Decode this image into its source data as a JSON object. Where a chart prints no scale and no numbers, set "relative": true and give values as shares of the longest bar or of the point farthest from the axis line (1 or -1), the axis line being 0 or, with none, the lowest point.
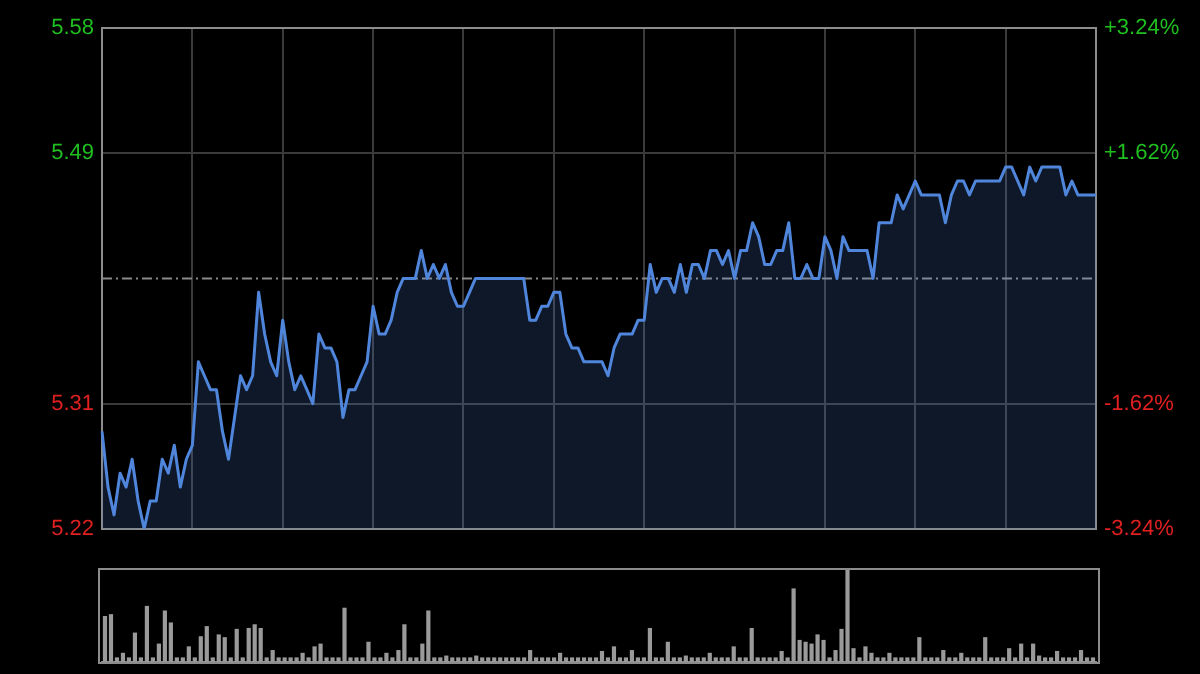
{
  "chart_data": [
    {
      "type": "area",
      "categories": [
        null,
        null,
        null,
        null,
        null,
        null,
        null,
        null,
        null,
        null,
        null,
        null,
        null,
        null,
        null,
        null,
        null,
        null,
        null,
        null,
        null,
        null,
        null,
        null,
        null,
        null,
        null,
        null,
        null,
        null,
        null,
        null,
        null,
        null,
        null,
        null,
        null,
        null,
        null,
        null,
        null,
        null,
        null,
        null,
        null,
        null,
        null,
        null,
        null,
        null,
        null,
        null,
        null,
        null,
        null,
        null,
        null,
        null,
        null,
        null,
        null,
        null,
        null,
        null,
        null,
        null,
        null,
        null,
        null,
        null,
        null,
        null,
        null,
        null,
        null,
        null,
        null,
        null,
        null,
        null,
        null,
        null,
        null,
        null,
        null,
        null,
        null,
        null,
        null,
        null,
        null,
        null,
        null,
        null,
        null,
        null,
        null,
        null,
        null,
        null,
        null,
        null,
        null,
        null,
        null,
        null,
        null,
        null,
        null,
        null,
        null,
        null,
        null,
        null,
        null,
        null,
        null,
        null,
        null,
        null,
        null,
        null,
        null,
        null,
        null,
        null,
        null,
        null,
        null,
        null,
        null,
        null,
        null,
        null,
        null,
        null,
        null,
        null,
        null,
        null,
        null,
        null,
        null,
        null,
        null,
        null,
        null,
        null,
        null,
        null,
        null,
        null,
        null,
        null,
        null,
        null,
        null,
        null,
        null,
        null,
        null,
        null,
        null,
        null,
        null,
        null
      ],
      "ylim": [
        5.22,
        5.58
      ],
      "yticks": [
        5.22,
        5.31,
        5.49,
        5.58
      ],
      "y2lim": [
        -3.24,
        3.24
      ],
      "y2ticks": [
        {
          "value": -3.24,
          "label": "-3.24%"
        },
        {
          "value": -1.62,
          "label": "-1.62%"
        },
        {
          "value": 1.62,
          "label": "+1.62%"
        },
        {
          "value": 3.24,
          "label": "+3.24%"
        }
      ],
      "grid": true,
      "tick_labels": "y",
      "ref_lines": [
        {
          "axis": "y",
          "value": 5.4,
          "line_style": "dashed",
          "color": "#8a8a8a"
        }
      ],
      "series": [
        {
          "color": "#4f86dc",
          "values": [
            5.29,
            5.25,
            5.23,
            5.26,
            5.25,
            5.27,
            5.24,
            5.22,
            5.24,
            5.24,
            5.27,
            5.26,
            5.28,
            5.25,
            5.27,
            5.28,
            5.34,
            5.33,
            5.32,
            5.32,
            5.29,
            5.27,
            5.3,
            5.33,
            5.32,
            5.33,
            5.39,
            5.36,
            5.34,
            5.33,
            5.37,
            5.34,
            5.32,
            5.33,
            5.32,
            5.31,
            5.36,
            5.35,
            5.35,
            5.34,
            5.3,
            5.32,
            5.32,
            5.33,
            5.34,
            5.38,
            5.36,
            5.36,
            5.37,
            5.39,
            5.4,
            5.4,
            5.4,
            5.42,
            5.4,
            5.41,
            5.4,
            5.41,
            5.39,
            5.38,
            5.38,
            5.39,
            5.4,
            5.4,
            5.4,
            5.4,
            5.4,
            5.4,
            5.4,
            5.4,
            5.4,
            5.37,
            5.37,
            5.38,
            5.38,
            5.39,
            5.39,
            5.36,
            5.35,
            5.35,
            5.34,
            5.34,
            5.34,
            5.34,
            5.33,
            5.35,
            5.36,
            5.36,
            5.36,
            5.37,
            5.37,
            5.41,
            5.39,
            5.4,
            5.4,
            5.39,
            5.41,
            5.39,
            5.41,
            5.41,
            5.4,
            5.42,
            5.42,
            5.41,
            5.42,
            5.4,
            5.42,
            5.42,
            5.44,
            5.43,
            5.41,
            5.41,
            5.42,
            5.42,
            5.44,
            5.4,
            5.4,
            5.41,
            5.4,
            5.4,
            5.43,
            5.42,
            5.4,
            5.43,
            5.42,
            5.42,
            5.42,
            5.42,
            5.4,
            5.44,
            5.44,
            5.44,
            5.46,
            5.45,
            5.46,
            5.47,
            5.46,
            5.46,
            5.46,
            5.46,
            5.44,
            5.46,
            5.47,
            5.47,
            5.46,
            5.47,
            5.47,
            5.47,
            5.47,
            5.47,
            5.48,
            5.48,
            5.47,
            5.46,
            5.48,
            5.47,
            5.48,
            5.48,
            5.48,
            5.48,
            5.46,
            5.47,
            5.46,
            5.46,
            5.46,
            5.46
          ]
        }
      ]
    },
    {
      "type": "bar",
      "relative": true,
      "tick_labels": false,
      "categories": [
        null,
        null,
        null,
        null,
        null,
        null,
        null,
        null,
        null,
        null,
        null,
        null,
        null,
        null,
        null,
        null,
        null,
        null,
        null,
        null,
        null,
        null,
        null,
        null,
        null,
        null,
        null,
        null,
        null,
        null,
        null,
        null,
        null,
        null,
        null,
        null,
        null,
        null,
        null,
        null,
        null,
        null,
        null,
        null,
        null,
        null,
        null,
        null,
        null,
        null,
        null,
        null,
        null,
        null,
        null,
        null,
        null,
        null,
        null,
        null,
        null,
        null,
        null,
        null,
        null,
        null,
        null,
        null,
        null,
        null,
        null,
        null,
        null,
        null,
        null,
        null,
        null,
        null,
        null,
        null,
        null,
        null,
        null,
        null,
        null,
        null,
        null,
        null,
        null,
        null,
        null,
        null,
        null,
        null,
        null,
        null,
        null,
        null,
        null,
        null,
        null,
        null,
        null,
        null,
        null,
        null,
        null,
        null,
        null,
        null,
        null,
        null,
        null,
        null,
        null,
        null,
        null,
        null,
        null,
        null,
        null,
        null,
        null,
        null,
        null,
        null,
        null,
        null,
        null,
        null,
        null,
        null,
        null,
        null,
        null,
        null,
        null,
        null,
        null,
        null,
        null,
        null,
        null,
        null,
        null,
        null,
        null,
        null,
        null,
        null,
        null,
        null,
        null,
        null,
        null,
        null,
        null,
        null,
        null,
        null,
        null,
        null,
        null,
        null,
        null,
        null
      ],
      "series": [
        {
          "color": "#9a9a9a",
          "values": [
            0.5,
            0.52,
            0.05,
            0.1,
            0.05,
            0.32,
            0.05,
            0.61,
            0.05,
            0.2,
            0.56,
            0.43,
            0.05,
            0.05,
            0.17,
            0.05,
            0.28,
            0.39,
            0.05,
            0.3,
            0.27,
            0.05,
            0.36,
            0.05,
            0.37,
            0.41,
            0.37,
            0.05,
            0.13,
            0.05,
            0.05,
            0.05,
            0.05,
            0.1,
            0.05,
            0.17,
            0.2,
            0.05,
            0.05,
            0.05,
            0.59,
            0.05,
            0.05,
            0.05,
            0.22,
            0.05,
            0.05,
            0.1,
            0.05,
            0.13,
            0.41,
            0.05,
            0.05,
            0.2,
            0.56,
            0.05,
            0.05,
            0.07,
            0.05,
            0.05,
            0.05,
            0.05,
            0.07,
            0.05,
            0.05,
            0.05,
            0.05,
            0.05,
            0.05,
            0.05,
            0.05,
            0.13,
            0.05,
            0.05,
            0.05,
            0.05,
            0.1,
            0.05,
            0.05,
            0.05,
            0.05,
            0.05,
            0.05,
            0.12,
            0.05,
            0.17,
            0.05,
            0.05,
            0.13,
            0.05,
            0.05,
            0.37,
            0.05,
            0.05,
            0.22,
            0.05,
            0.05,
            0.07,
            0.05,
            0.05,
            0.05,
            0.1,
            0.05,
            0.05,
            0.05,
            0.17,
            0.05,
            0.05,
            0.37,
            0.05,
            0.05,
            0.05,
            0.05,
            0.12,
            0.05,
            0.8,
            0.24,
            0.22,
            0.2,
            0.3,
            0.24,
            0.05,
            0.13,
            0.36,
            1,
            0.15,
            0.05,
            0.17,
            0.1,
            0.05,
            0.05,
            0.1,
            0.05,
            0.05,
            0.05,
            0.05,
            0.27,
            0.05,
            0.05,
            0.05,
            0.13,
            0.05,
            0.05,
            0.1,
            0.05,
            0.05,
            0.05,
            0.27,
            0.05,
            0.05,
            0.05,
            0.15,
            0.05,
            0.2,
            0.05,
            0.2,
            0.07,
            0.05,
            0.05,
            0.12,
            0.05,
            0.05,
            0.05,
            0.13,
            0.05,
            0.05
          ]
        }
      ]
    }
  ]
}
